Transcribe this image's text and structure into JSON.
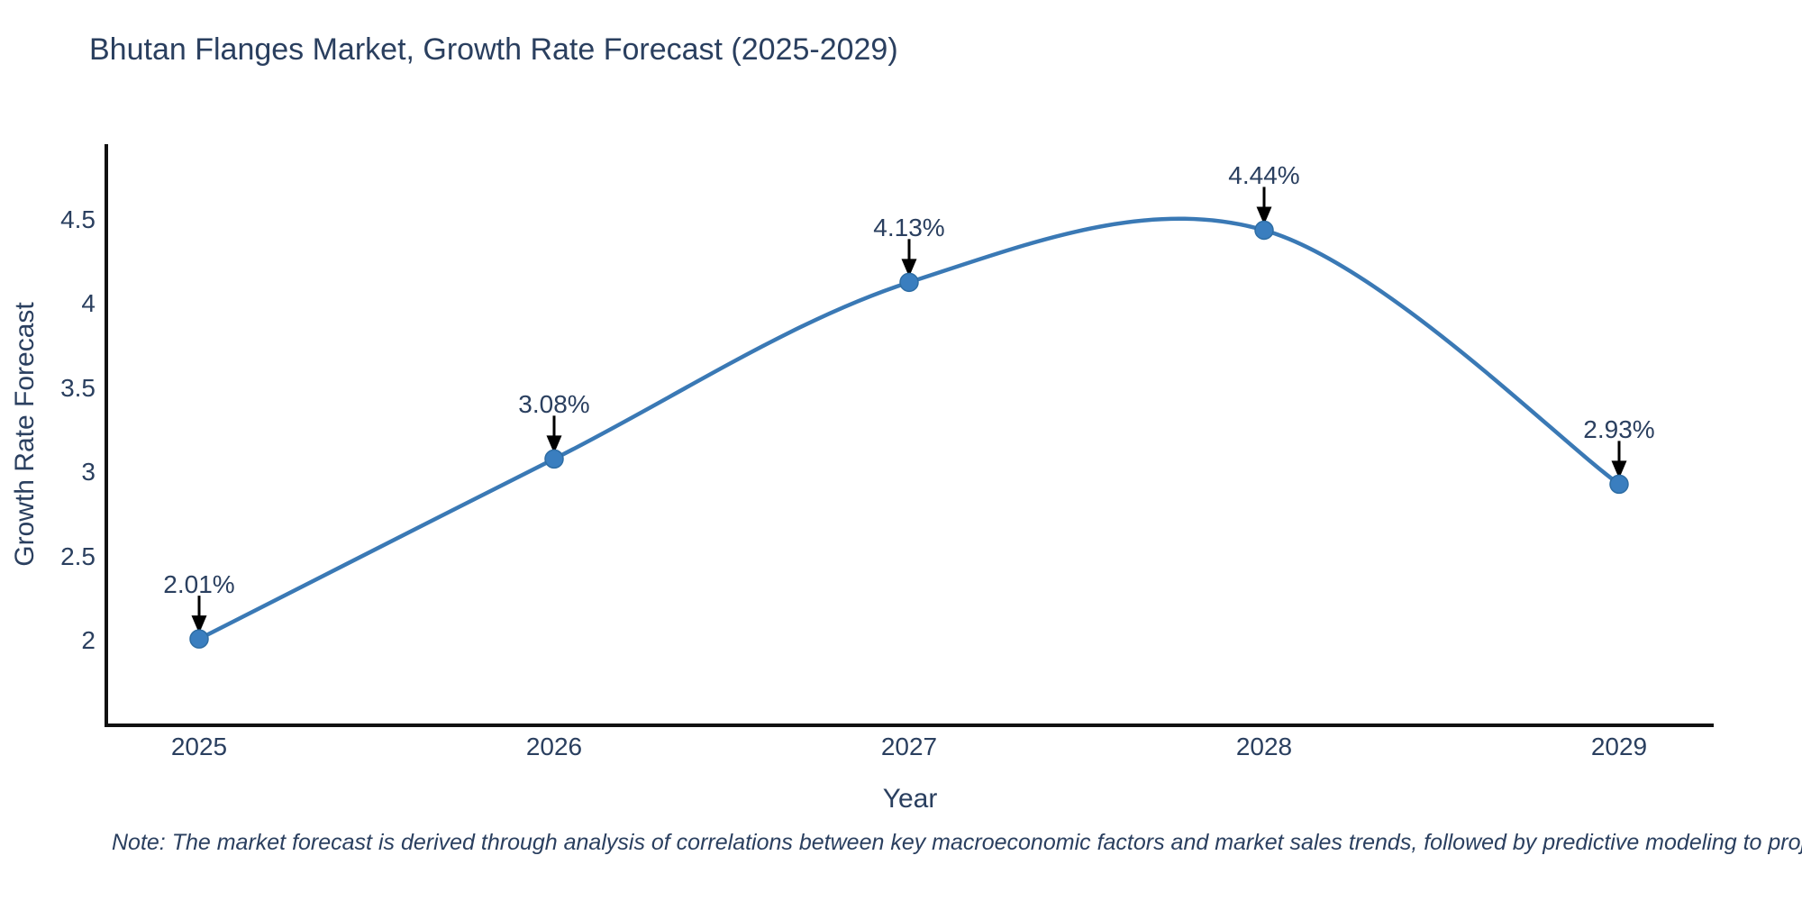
{
  "title": "Bhutan Flanges Market, Growth Rate Forecast (2025-2029)",
  "note": "Note: The market forecast is derived through analysis of correlations between key macroeconomic factors and market sales trends, followed by predictive modeling to project future sales",
  "chart_data": {
    "type": "line",
    "title": "Bhutan Flanges Market, Growth Rate Forecast (2025-2029)",
    "xlabel": "Year",
    "ylabel": "Growth Rate Forecast",
    "x": [
      2025,
      2026,
      2027,
      2028,
      2029
    ],
    "categories": [
      "2025",
      "2026",
      "2027",
      "2028",
      "2029"
    ],
    "series": [
      {
        "name": "Growth Rate Forecast",
        "values": [
          2.01,
          3.08,
          4.13,
          4.44,
          2.93
        ]
      }
    ],
    "point_labels": [
      "2.01%",
      "3.08%",
      "4.13%",
      "4.44%",
      "2.93%"
    ],
    "ytick_labels_top_to_bottom": [
      "4.5",
      "4",
      "3.5",
      "3",
      "2.5",
      "2"
    ],
    "ylim": [
      1.5,
      4.95
    ],
    "grid": false,
    "legend_position": "none",
    "line_shape": "spline",
    "line_color": "#3a79b5",
    "marker_color": "#3a7ebf",
    "marker_edge_color": "#2e6da4",
    "axis_color": "#111111",
    "text_color": "#2a3f5f",
    "arrow_color": "#000000",
    "background_color": "#ffffff"
  }
}
